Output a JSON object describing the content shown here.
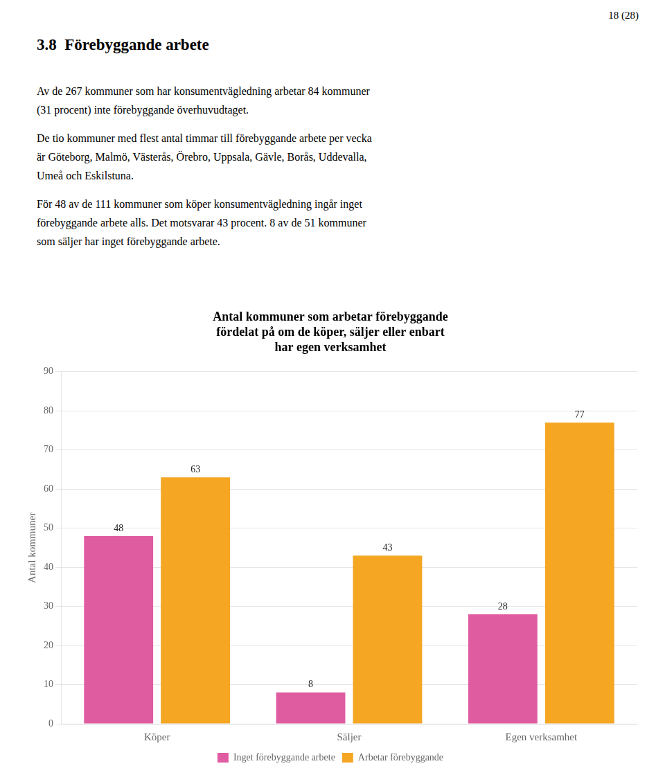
{
  "page_number": "18 (28)",
  "heading": "3.8  Förebyggande arbete",
  "paragraphs": [
    [
      "Av de 267 kommuner som har konsumentvägledning arbetar 84 kommuner",
      "(31 procent) inte förebyggande överhuvudtaget."
    ],
    [
      "De tio kommuner med flest antal timmar till förebyggande arbete per vecka",
      "är Göteborg, Malmö, Västerås, Örebro, Uppsala, Gävle, Borås, Uddevalla,",
      "Umeå och Eskilstuna."
    ],
    [
      "För 48 av de 111 kommuner som köper konsumentvägledning ingår inget",
      "förebyggande arbete alls. Det motsvarar 43 procent. 8 av de 51 kommuner",
      "som säljer har inget förebyggande arbete."
    ]
  ],
  "chart_data": {
    "type": "bar",
    "title": "Antal kommuner som arbetar förebyggande\nfördelat på om de köper, säljer eller enbart\nhar egen verksamhet",
    "categories": [
      "Köper",
      "Säljer",
      "Egen verksamhet"
    ],
    "series": [
      {
        "name": "Inget förebyggande arbete",
        "color": "#E05CA0",
        "values": [
          48,
          8,
          28
        ]
      },
      {
        "name": "Arbetar förebyggande",
        "color": "#F5A623",
        "values": [
          63,
          43,
          77
        ]
      }
    ],
    "ylabel": "Antal kommuner",
    "ylim": [
      0,
      90
    ],
    "yticks": [
      0,
      10,
      20,
      30,
      40,
      50,
      60,
      70,
      80,
      90
    ],
    "grid": true,
    "legend": "bottom",
    "data_labels": true
  }
}
